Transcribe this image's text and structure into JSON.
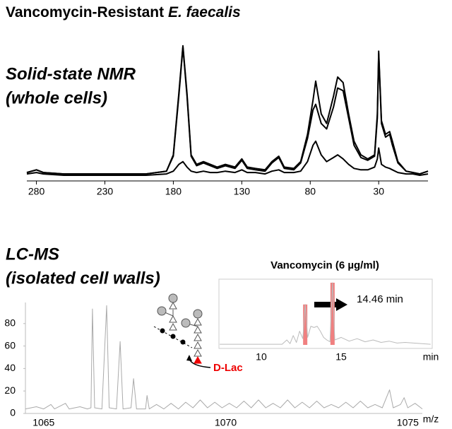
{
  "title": {
    "main": "Vancomycin-Resistant",
    "species": "E. faecalis"
  },
  "chart_data": [
    {
      "type": "line",
      "label": [
        "Solid-state NMR",
        "(whole cells)"
      ],
      "x": [
        287,
        280,
        275,
        260,
        240,
        220,
        200,
        185,
        180,
        176,
        173,
        170,
        167,
        163,
        158,
        153,
        148,
        142,
        135,
        130,
        126,
        120,
        113,
        108,
        103,
        99,
        92,
        87,
        82,
        78,
        76,
        72,
        68,
        63,
        60,
        56,
        52,
        48,
        43,
        38,
        33,
        31,
        30,
        28,
        25,
        22,
        20,
        16,
        10,
        5,
        0,
        -6
      ],
      "xlim": [
        287,
        -6
      ],
      "xticks": [
        280,
        230,
        180,
        130,
        80,
        30
      ],
      "ylim": [
        0,
        100
      ],
      "series": [
        {
          "color": "#000000",
          "values": [
            2,
            4,
            2,
            1,
            1,
            1,
            1,
            3,
            15,
            60,
            95,
            60,
            15,
            8,
            10,
            8,
            6,
            8,
            6,
            12,
            6,
            5,
            4,
            10,
            14,
            6,
            5,
            10,
            30,
            55,
            69,
            45,
            38,
            58,
            72,
            68,
            45,
            25,
            15,
            12,
            15,
            45,
            91,
            40,
            30,
            32,
            25,
            10,
            3,
            2,
            1,
            3
          ]
        },
        {
          "color": "#000000",
          "values": [
            2,
            4,
            2,
            1,
            1,
            1,
            1,
            3,
            14,
            58,
            94,
            58,
            14,
            7,
            9,
            7,
            5,
            7,
            5,
            11,
            5,
            4,
            3,
            9,
            13,
            5,
            4,
            9,
            27,
            48,
            52,
            38,
            34,
            50,
            64,
            62,
            42,
            22,
            13,
            11,
            14,
            42,
            89,
            38,
            28,
            30,
            22,
            9,
            3,
            2,
            1,
            3
          ]
        },
        {
          "color": "#000000",
          "values": [
            1,
            2,
            1,
            0,
            0,
            0,
            0,
            1,
            3,
            8,
            10,
            6,
            3,
            2,
            3,
            2,
            2,
            3,
            2,
            4,
            2,
            2,
            1,
            3,
            4,
            2,
            2,
            3,
            10,
            22,
            25,
            15,
            10,
            13,
            15,
            12,
            8,
            5,
            4,
            4,
            6,
            12,
            20,
            8,
            6,
            5,
            4,
            2,
            1,
            1,
            0,
            1
          ]
        }
      ]
    },
    {
      "type": "line",
      "label": [
        "LC-MS",
        "(isolated cell walls)"
      ],
      "x_label": "m/z",
      "structure_label": "D-Lac",
      "color": "#aaaaaa",
      "x": [
        1064.5,
        1064.8,
        1065.0,
        1065.2,
        1065.3,
        1065.6,
        1065.7,
        1066.0,
        1066.2,
        1066.3,
        1066.34,
        1066.4,
        1066.6,
        1066.73,
        1066.8,
        1067.0,
        1067.1,
        1067.18,
        1067.4,
        1067.47,
        1067.55,
        1067.8,
        1067.84,
        1067.9,
        1068.1,
        1068.3,
        1068.5,
        1068.7,
        1068.9,
        1069.1,
        1069.3,
        1069.5,
        1069.7,
        1069.9,
        1070.1,
        1070.3,
        1070.5,
        1070.7,
        1070.9,
        1071.1,
        1071.3,
        1071.5,
        1071.7,
        1071.9,
        1072.1,
        1072.3,
        1072.5,
        1072.7,
        1072.9,
        1073.1,
        1073.3,
        1073.5,
        1073.7,
        1073.9,
        1074.1,
        1074.3,
        1074.5,
        1074.6,
        1074.8,
        1074.9,
        1075.0,
        1075.2,
        1075.4
      ],
      "values": [
        4,
        6,
        4,
        8,
        4,
        9,
        4,
        6,
        4,
        5,
        93,
        5,
        4,
        96,
        5,
        4,
        64,
        4,
        5,
        31,
        4,
        4,
        16,
        4,
        8,
        4,
        9,
        4,
        10,
        5,
        12,
        5,
        10,
        5,
        9,
        5,
        11,
        5,
        12,
        5,
        9,
        5,
        12,
        5,
        10,
        5,
        11,
        5,
        8,
        5,
        10,
        5,
        11,
        5,
        8,
        5,
        21,
        5,
        8,
        14,
        5,
        9,
        4
      ],
      "xlim": [
        1064.5,
        1075.4
      ],
      "xticks": [
        1065,
        1070,
        1075
      ],
      "ylim": [
        0,
        100
      ],
      "yticks": [
        0,
        20,
        40,
        60,
        80
      ]
    },
    {
      "type": "line",
      "title": "Vancomycin (6 µg/ml)",
      "x_label": "min",
      "annotation": "14.46 min",
      "color": "#bbbbbb",
      "highlight_color": "#f08080",
      "highlight_x": [
        12.75,
        14.46
      ],
      "x": [
        7.4,
        11.3,
        11.6,
        11.8,
        12.0,
        12.2,
        12.4,
        12.6,
        12.75,
        12.9,
        13.1,
        13.3,
        13.5,
        13.7,
        13.9,
        14.1,
        14.3,
        14.46,
        14.6,
        15.0,
        15.5,
        16.0,
        16.5,
        17.0,
        17.5,
        18.0,
        18.5,
        19.0,
        20.6
      ],
      "values": [
        1,
        1,
        8,
        2,
        15,
        4,
        22,
        10,
        65,
        12,
        30,
        28,
        30,
        22,
        12,
        8,
        5,
        100,
        8,
        12,
        6,
        10,
        5,
        8,
        4,
        6,
        3,
        4,
        1
      ],
      "xlim": [
        7.35,
        20.7
      ],
      "xticks": [
        10,
        15
      ],
      "ylim": [
        0,
        100
      ]
    }
  ]
}
